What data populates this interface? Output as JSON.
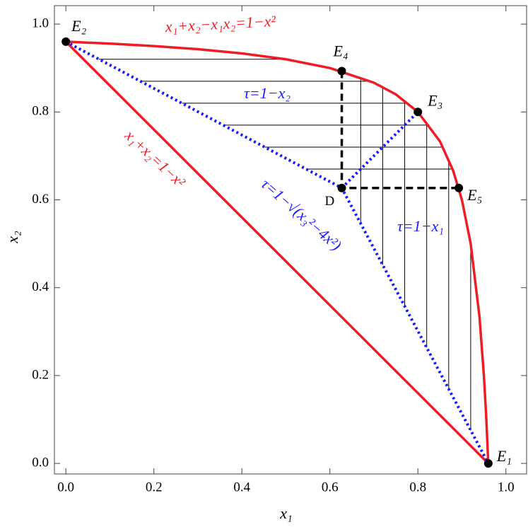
{
  "chart_data": {
    "type": "line",
    "xlabel": "x₁",
    "ylabel": "x₂",
    "xlim": [
      -0.026,
      1.047
    ],
    "ylim": [
      -0.024,
      1.042
    ],
    "xticks": [
      {
        "value": 0,
        "label": "0.0"
      },
      0.2,
      0.4,
      0.6,
      0.8,
      {
        "value": 1,
        "label": "1.0"
      }
    ],
    "yticks": [
      {
        "value": 0,
        "label": "0.0"
      },
      0.2,
      0.4,
      0.6,
      0.8,
      {
        "value": 1,
        "label": "1.0"
      }
    ],
    "series": [
      {
        "color": "#ee1c25",
        "style": "solid",
        "x": [
          0,
          0.1,
          0.2,
          0.3,
          0.4,
          0.5,
          0.6,
          0.7,
          0.75,
          0.8,
          0.85,
          0.88,
          0.9,
          0.92,
          0.94,
          0.95,
          0.955,
          0.96
        ],
        "y": [
          0.96,
          0.9556,
          0.95,
          0.9429,
          0.9333,
          0.92,
          0.9,
          0.8667,
          0.84,
          0.8,
          0.7333,
          0.6667,
          0.6,
          0.5,
          0.3333,
          0.2,
          0.111,
          0
        ]
      },
      {
        "color": "#ee1c25",
        "style": "solid",
        "x": [
          0,
          0.96
        ],
        "y": [
          0.96,
          0
        ]
      },
      {
        "color": "#1a1aff",
        "style": "dotted",
        "x": [
          0,
          0.627,
          0.96
        ],
        "y": [
          0.96,
          0.627,
          0
        ]
      },
      {
        "color": "#1a1aff",
        "style": "dotted",
        "x": [
          0.627,
          0.8
        ],
        "y": [
          0.627,
          0.8
        ]
      },
      {
        "color": "#000000",
        "style": "dashed",
        "x": [
          0.627,
          0.627,
          0.893
        ],
        "y": [
          0.893,
          0.627,
          0.627
        ]
      }
    ],
    "hatch_h": [
      {
        "y": 0.67,
        "x": [
          0.546,
          0.879
        ]
      },
      {
        "y": 0.72,
        "x": [
          0.452,
          0.857
        ]
      },
      {
        "y": 0.77,
        "x": [
          0.358,
          0.826
        ]
      },
      {
        "y": 0.82,
        "x": [
          0.264,
          0.778
        ]
      },
      {
        "y": 0.87,
        "x": [
          0.169,
          0.692
        ]
      },
      {
        "y": 0.92,
        "x": [
          0.075,
          0.5
        ]
      }
    ],
    "hatch_v": [
      {
        "x": 0.67,
        "y": [
          0.546,
          0.879
        ]
      },
      {
        "x": 0.72,
        "y": [
          0.452,
          0.857
        ]
      },
      {
        "x": 0.77,
        "y": [
          0.358,
          0.826
        ]
      },
      {
        "x": 0.82,
        "y": [
          0.264,
          0.778
        ]
      },
      {
        "x": 0.87,
        "y": [
          0.169,
          0.692
        ]
      },
      {
        "x": 0.92,
        "y": [
          0.075,
          0.5
        ]
      }
    ],
    "points": [
      {
        "label": "E₂",
        "x": 0,
        "y": 0.96
      },
      {
        "label": "E₄",
        "x": 0.627,
        "y": 0.893
      },
      {
        "label": "E₃",
        "x": 0.8,
        "y": 0.8
      },
      {
        "label": "D",
        "x": 0.627,
        "y": 0.627
      },
      {
        "label": "E₅",
        "x": 0.893,
        "y": 0.627
      },
      {
        "label": "E₁",
        "x": 0.96,
        "y": 0
      }
    ],
    "annotations": [
      {
        "text": "x₁+x₂−x₁x₂=1−x²",
        "color": "#ee1c25"
      },
      {
        "text": "τ=1−x₂",
        "color": "#1a1aff"
      },
      {
        "text": "x₁+x₂=1−x²",
        "color": "#ee1c25"
      },
      {
        "text": "τ=1−√(x₃²−4x²)",
        "color": "#1a1aff"
      },
      {
        "text": "τ=1−x₁",
        "color": "#1a1aff"
      }
    ]
  }
}
